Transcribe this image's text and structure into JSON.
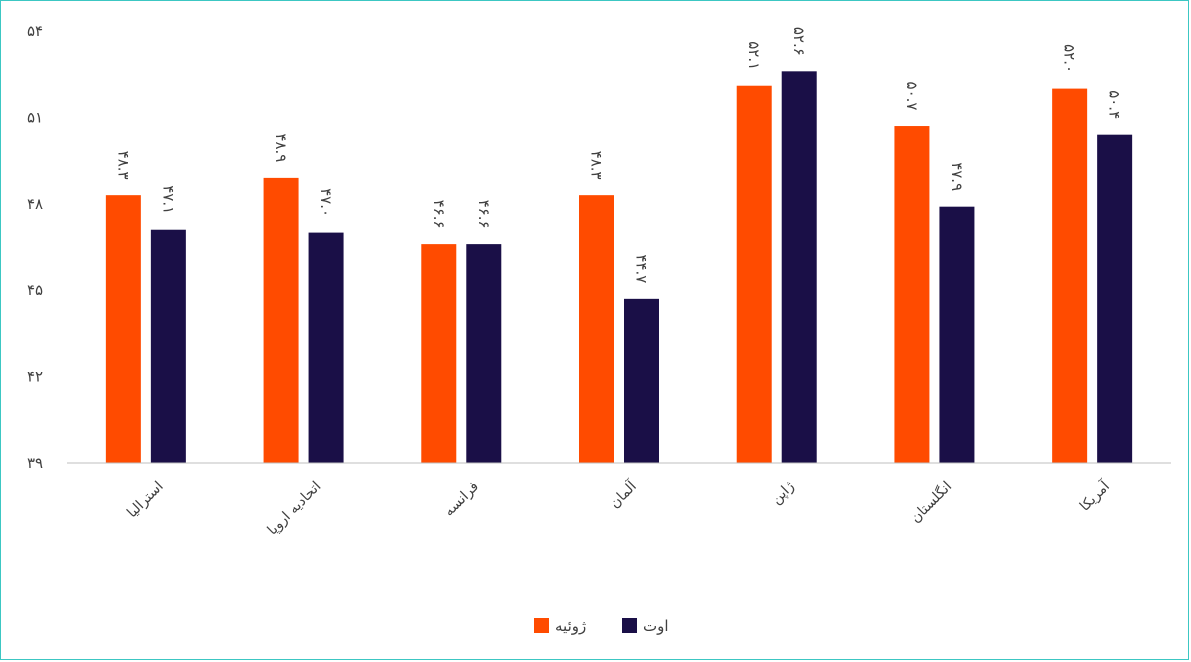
{
  "chart_data": {
    "type": "bar",
    "categories": [
      "استرالیا",
      "اتحادیه اروپا",
      "فرانسه",
      "آلمان",
      "ژاپن",
      "انگلستان",
      "آمریکا"
    ],
    "series": [
      {
        "name": "ژوئیه",
        "color": "#ff4b00",
        "values": [
          48.3,
          48.9,
          46.6,
          48.3,
          52.1,
          50.7,
          52.0
        ],
        "labels": [
          "۴۸.۳",
          "۴۸.۹",
          "۴۶.۶",
          "۴۸.۳",
          "۵۲.۱",
          "۵۰.۷",
          "۵۲.۰"
        ]
      },
      {
        "name": "اوت",
        "color": "#1a0f47",
        "values": [
          47.1,
          47.0,
          46.6,
          44.7,
          52.6,
          47.9,
          50.4
        ],
        "labels": [
          "۴۷.۱",
          "۴۷.۰",
          "۴۶.۶",
          "۴۴.۷",
          "۵۲.۶",
          "۴۷.۹",
          "۵۰.۴"
        ]
      }
    ],
    "ylim": [
      39,
      54
    ],
    "yticks": [
      39,
      42,
      45,
      48,
      51,
      54
    ],
    "ytick_labels": [
      "۳۹",
      "۴۲",
      "۴۵",
      "۴۸",
      "۵۱",
      "۵۴"
    ],
    "title": "",
    "xlabel": "",
    "ylabel": "",
    "grid": false,
    "legend_position": "bottom"
  }
}
